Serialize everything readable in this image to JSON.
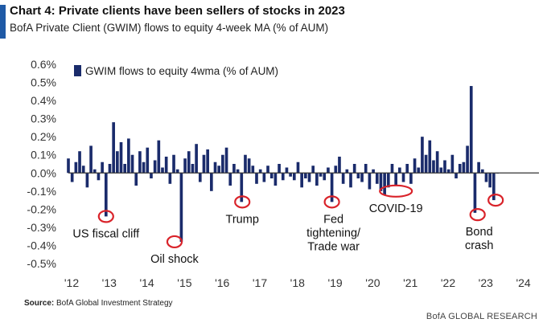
{
  "header": {
    "title": "Chart 4: Private clients have been sellers of stocks in 2023",
    "subtitle": "BofA Private Client (GWIM) flows to equity 4-week MA (% of AUM)"
  },
  "footer": {
    "source_label": "Source:",
    "source_text": "BofA Global Investment Strategy",
    "brand": "BofA GLOBAL RESEARCH"
  },
  "colors": {
    "bars": "#1a2b6b",
    "circles": "#d9232a",
    "axis": "#333333",
    "title_bar": "#1f5aa6"
  },
  "chart_data": {
    "type": "bar",
    "title": "",
    "xlabel": "",
    "ylabel": "",
    "ylim": [
      -0.5,
      0.6
    ],
    "xlim": [
      2012,
      2024.5
    ],
    "yticks": [
      "0.6%",
      "0.5%",
      "0.4%",
      "0.3%",
      "0.2%",
      "0.1%",
      "0.0%",
      "-0.1%",
      "-0.2%",
      "-0.3%",
      "-0.4%",
      "-0.5%"
    ],
    "ytick_values": [
      0.6,
      0.5,
      0.4,
      0.3,
      0.2,
      0.1,
      0.0,
      -0.1,
      -0.2,
      -0.3,
      -0.4,
      -0.5
    ],
    "xticks": [
      "'12",
      "'13",
      "'14",
      "'15",
      "'16",
      "'17",
      "'18",
      "'19",
      "'20",
      "'21",
      "'22",
      "'23",
      "'24"
    ],
    "xtick_values": [
      2012,
      2013,
      2014,
      2015,
      2016,
      2017,
      2018,
      2019,
      2020,
      2021,
      2022,
      2023,
      2024
    ],
    "legend": {
      "label": "GWIM flows to equity 4wma (% of AUM)",
      "position": "top-left"
    },
    "series": [
      {
        "name": "GWIM flows to equity 4wma (% of AUM)",
        "x": [
          2012.0,
          2012.1,
          2012.2,
          2012.3,
          2012.4,
          2012.5,
          2012.6,
          2012.7,
          2012.8,
          2012.9,
          2013.0,
          2013.1,
          2013.2,
          2013.3,
          2013.4,
          2013.5,
          2013.6,
          2013.7,
          2013.8,
          2013.9,
          2014.0,
          2014.1,
          2014.2,
          2014.3,
          2014.4,
          2014.5,
          2014.6,
          2014.7,
          2014.8,
          2014.9,
          2015.0,
          2015.1,
          2015.2,
          2015.3,
          2015.4,
          2015.5,
          2015.6,
          2015.7,
          2015.8,
          2015.9,
          2016.0,
          2016.1,
          2016.2,
          2016.3,
          2016.4,
          2016.5,
          2016.6,
          2016.7,
          2016.8,
          2016.9,
          2017.0,
          2017.1,
          2017.2,
          2017.3,
          2017.4,
          2017.5,
          2017.6,
          2017.7,
          2017.8,
          2017.9,
          2018.0,
          2018.1,
          2018.2,
          2018.3,
          2018.4,
          2018.5,
          2018.6,
          2018.7,
          2018.8,
          2018.9,
          2019.0,
          2019.1,
          2019.2,
          2019.3,
          2019.4,
          2019.5,
          2019.6,
          2019.7,
          2019.8,
          2019.9,
          2020.0,
          2020.1,
          2020.2,
          2020.3,
          2020.4,
          2020.5,
          2020.6,
          2020.7,
          2020.8,
          2020.9,
          2021.0,
          2021.1,
          2021.2,
          2021.3,
          2021.4,
          2021.5,
          2021.6,
          2021.7,
          2021.8,
          2021.9,
          2022.0,
          2022.1,
          2022.2,
          2022.3,
          2022.4,
          2022.5,
          2022.6,
          2022.7,
          2022.8,
          2022.9,
          2023.0,
          2023.1,
          2023.2,
          2023.3,
          2023.4
        ],
        "values": [
          0.08,
          -0.05,
          0.06,
          0.12,
          0.04,
          -0.08,
          0.15,
          0.02,
          -0.04,
          0.06,
          -0.24,
          0.05,
          0.28,
          0.12,
          0.17,
          0.05,
          0.19,
          0.1,
          -0.07,
          0.12,
          0.06,
          0.14,
          -0.03,
          0.07,
          0.18,
          0.03,
          0.09,
          -0.06,
          0.1,
          0.02,
          -0.38,
          0.08,
          0.12,
          0.05,
          0.16,
          -0.05,
          0.1,
          0.13,
          -0.1,
          0.06,
          0.04,
          0.1,
          0.14,
          -0.07,
          0.05,
          0.02,
          -0.16,
          0.1,
          0.08,
          0.04,
          -0.06,
          0.02,
          -0.05,
          0.04,
          -0.03,
          -0.07,
          0.05,
          -0.04,
          0.03,
          -0.02,
          -0.04,
          0.06,
          -0.08,
          -0.03,
          -0.05,
          0.04,
          -0.07,
          -0.02,
          -0.04,
          0.03,
          -0.16,
          0.04,
          0.09,
          -0.06,
          0.02,
          -0.08,
          0.05,
          -0.03,
          -0.05,
          0.05,
          -0.09,
          0.02,
          -0.06,
          -0.1,
          -0.12,
          -0.08,
          0.05,
          -0.07,
          0.03,
          -0.05,
          0.05,
          -0.06,
          0.08,
          0.03,
          0.2,
          0.1,
          0.18,
          0.07,
          0.12,
          0.03,
          0.07,
          0.02,
          0.1,
          -0.03,
          0.05,
          0.06,
          0.15,
          0.48,
          -0.22,
          0.06,
          0.02,
          -0.05,
          -0.08,
          -0.15,
          0.0
        ]
      }
    ],
    "annotations": [
      {
        "lines": [
          "US fiscal cliff"
        ],
        "x": 2013.0,
        "y": -0.24
      },
      {
        "lines": [
          "Oil shock"
        ],
        "x": 2014.82,
        "y": -0.38
      },
      {
        "lines": [
          "Trump"
        ],
        "x": 2016.62,
        "y": -0.16
      },
      {
        "lines": [
          "Fed",
          "tightening/",
          "Trade war"
        ],
        "x": 2019.0,
        "y": -0.16
      },
      {
        "lines": [
          "COVID-19"
        ],
        "x": 2020.7,
        "y": -0.1
      },
      {
        "lines": [
          "Bond",
          "crash"
        ],
        "x": 2022.87,
        "y": -0.23
      },
      {
        "lines": [],
        "x": 2023.35,
        "y": -0.15
      }
    ]
  }
}
